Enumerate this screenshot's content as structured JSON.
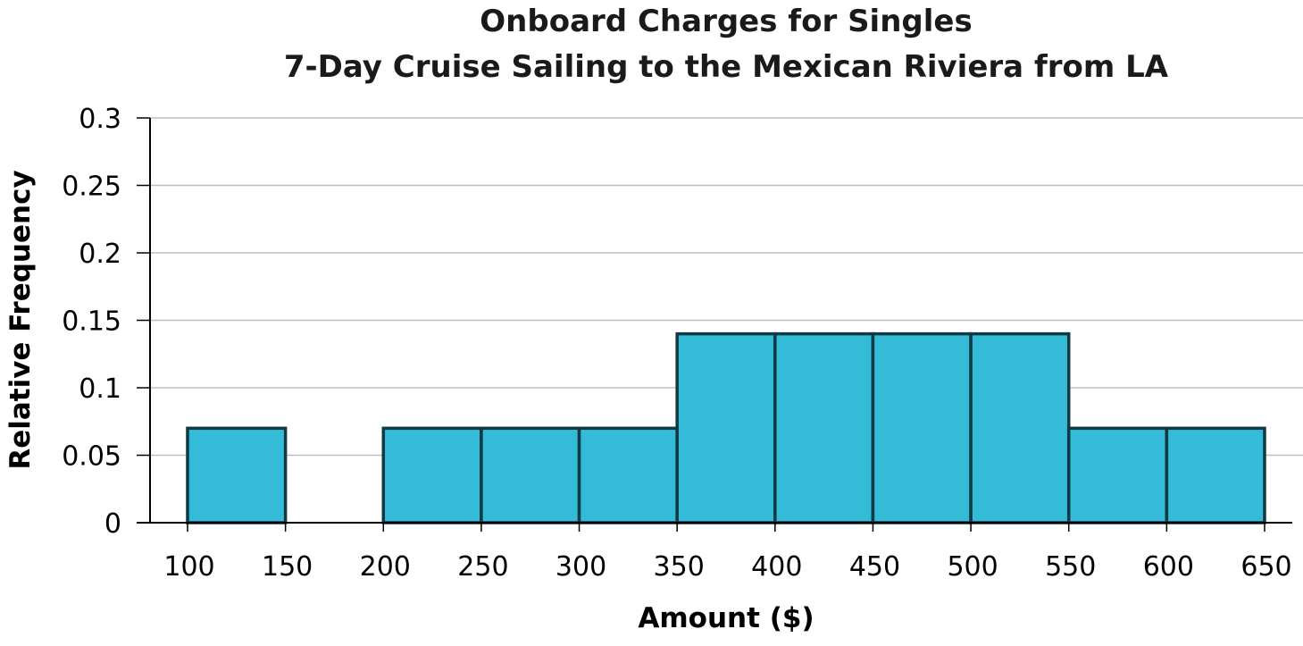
{
  "chart_data": {
    "type": "bar",
    "title": "Onboard Charges for Singles",
    "subtitle": "7-Day Cruise Sailing to the Mexican Riviera from LA",
    "xlabel": "Amount ($)",
    "ylabel": "Relative Frequency",
    "xlim": [
      100,
      650
    ],
    "ylim": [
      0,
      0.3
    ],
    "x_ticks": [
      "100",
      "150",
      "200",
      "250",
      "300",
      "350",
      "400",
      "450",
      "500",
      "550",
      "600",
      "650"
    ],
    "x_tick_values": [
      100,
      150,
      200,
      250,
      300,
      350,
      400,
      450,
      500,
      550,
      600,
      650
    ],
    "y_ticks": [
      "0",
      "0.05",
      "0.1",
      "0.15",
      "0.2",
      "0.25",
      "0.3"
    ],
    "y_tick_values": [
      0,
      0.05,
      0.1,
      0.15,
      0.2,
      0.25,
      0.3
    ],
    "bins": [
      {
        "start": 100,
        "end": 150,
        "value": 0.07
      },
      {
        "start": 150,
        "end": 200,
        "value": 0
      },
      {
        "start": 200,
        "end": 250,
        "value": 0.07
      },
      {
        "start": 250,
        "end": 300,
        "value": 0.07
      },
      {
        "start": 300,
        "end": 350,
        "value": 0.07
      },
      {
        "start": 350,
        "end": 400,
        "value": 0.14
      },
      {
        "start": 400,
        "end": 450,
        "value": 0.14
      },
      {
        "start": 450,
        "end": 500,
        "value": 0.14
      },
      {
        "start": 500,
        "end": 550,
        "value": 0.14
      },
      {
        "start": 550,
        "end": 600,
        "value": 0.07
      },
      {
        "start": 600,
        "end": 650,
        "value": 0.07
      }
    ],
    "grid": true,
    "colors": {
      "bar_fill": "#33bbd8",
      "bar_stroke": "#0f3a44",
      "grid": "#bdbdbd",
      "axis": "#000000"
    }
  }
}
